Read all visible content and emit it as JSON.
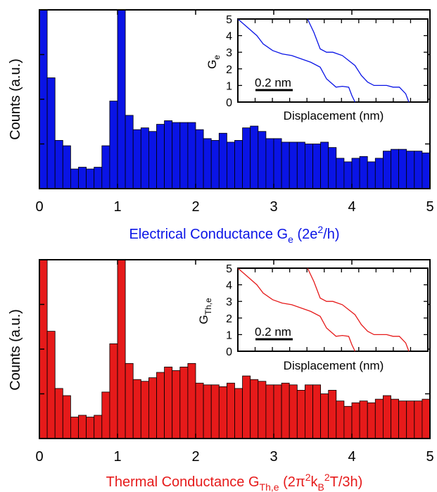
{
  "chart_data": [
    {
      "type": "bar",
      "name": "electrical",
      "color": "#0a14e6",
      "xlabel": "Electrical Conductance G",
      "xlabel_sub": "e",
      "xlabel_unit_open": " (2e",
      "xlabel_unit_sup": "2",
      "xlabel_unit_close": "/h)",
      "ylabel": "Counts (a.u.)",
      "xlim": [
        0,
        5
      ],
      "ylim": [
        0,
        100
      ],
      "xticks": [
        "0",
        "1",
        "2",
        "3",
        "4",
        "5"
      ],
      "bin_width": 0.1,
      "bin_starts": [
        0.0,
        0.1,
        0.2,
        0.3,
        0.4,
        0.5,
        0.6,
        0.7,
        0.8,
        0.9,
        1.0,
        1.1,
        1.2,
        1.3,
        1.4,
        1.5,
        1.6,
        1.7,
        1.8,
        1.9,
        2.0,
        2.1,
        2.2,
        2.3,
        2.4,
        2.5,
        2.6,
        2.7,
        2.8,
        2.9,
        3.0,
        3.1,
        3.2,
        3.3,
        3.4,
        3.5,
        3.6,
        3.7,
        3.8,
        3.9,
        4.0,
        4.1,
        4.2,
        4.3,
        4.4,
        4.5,
        4.6,
        4.7,
        4.8,
        4.9
      ],
      "values": [
        100,
        62,
        27,
        24,
        11,
        12,
        11,
        12,
        24,
        49,
        100,
        41,
        33,
        34,
        32,
        36,
        38,
        37,
        37,
        37,
        33,
        28,
        27,
        31,
        26,
        27,
        34,
        35,
        32,
        28,
        28,
        26,
        26,
        26,
        25,
        25,
        26,
        23,
        17,
        15,
        17,
        18,
        15,
        17,
        21,
        22,
        22,
        21,
        21,
        20
      ],
      "inset": {
        "ylabel": "G",
        "ylabel_sub": "e",
        "xlabel": "Displacement (nm)",
        "scale_bar": "0.2 nm",
        "yticks": [
          "0",
          "1",
          "2",
          "3",
          "4",
          "5"
        ],
        "ylim": [
          0,
          5
        ],
        "traces": [
          {
            "x": [
              0.0,
              0.06,
              0.12,
              0.16,
              0.22,
              0.28,
              0.34,
              0.4,
              0.46,
              0.52,
              0.56,
              0.62,
              0.66,
              0.7,
              0.72,
              0.74
            ],
            "y": [
              5.0,
              4.5,
              4.0,
              3.5,
              3.1,
              2.9,
              2.8,
              2.6,
              2.4,
              2.1,
              1.4,
              0.9,
              0.95,
              0.9,
              0.4,
              0.0
            ]
          },
          {
            "x": [
              0.44,
              0.48,
              0.52,
              0.56,
              0.6,
              0.66,
              0.7,
              0.74,
              0.78,
              0.82,
              0.86,
              0.9,
              0.94,
              0.98,
              1.02,
              1.06,
              1.08
            ],
            "y": [
              5.0,
              4.2,
              3.2,
              3.0,
              3.0,
              2.8,
              2.5,
              2.2,
              1.6,
              1.2,
              1.0,
              1.0,
              1.0,
              0.9,
              0.9,
              0.5,
              0.0
            ]
          }
        ]
      }
    },
    {
      "type": "bar",
      "name": "thermal",
      "color": "#e61a1a",
      "xlabel": "Thermal Conductance G",
      "xlabel_sub": "Th,e",
      "xlabel_unit_open": " (2π",
      "xlabel_unit_sup": "2",
      "xlabel_unit_mid": "k",
      "xlabel_unit_sub2": "B",
      "xlabel_unit_sup2": "2",
      "xlabel_unit_close": "T/3h)",
      "ylabel": "Counts (a.u.)",
      "xlim": [
        0,
        5
      ],
      "ylim": [
        0,
        100
      ],
      "xticks": [
        "0",
        "1",
        "2",
        "3",
        "4",
        "5"
      ],
      "bin_width": 0.1,
      "bin_starts": [
        0.0,
        0.1,
        0.2,
        0.3,
        0.4,
        0.5,
        0.6,
        0.7,
        0.8,
        0.9,
        1.0,
        1.1,
        1.2,
        1.3,
        1.4,
        1.5,
        1.6,
        1.7,
        1.8,
        1.9,
        2.0,
        2.1,
        2.2,
        2.3,
        2.4,
        2.5,
        2.6,
        2.7,
        2.8,
        2.9,
        3.0,
        3.1,
        3.2,
        3.3,
        3.4,
        3.5,
        3.6,
        3.7,
        3.8,
        3.9,
        4.0,
        4.1,
        4.2,
        4.3,
        4.4,
        4.5,
        4.6,
        4.7,
        4.8,
        4.9
      ],
      "values": [
        100,
        60,
        28,
        24,
        12,
        13,
        12,
        13,
        26,
        53,
        100,
        42,
        33,
        32,
        34,
        37,
        40,
        38,
        40,
        42,
        31,
        30,
        30,
        29,
        31,
        28,
        35,
        33,
        32,
        30,
        30,
        31,
        30,
        27,
        30,
        30,
        25,
        27,
        21,
        18,
        20,
        21,
        20,
        22,
        24,
        22,
        21,
        21,
        21,
        22
      ],
      "inset": {
        "ylabel": "G",
        "ylabel_sub": "Th,e",
        "xlabel": "Displacement (nm)",
        "scale_bar": "0.2 nm",
        "yticks": [
          "0",
          "1",
          "2",
          "3",
          "4",
          "5"
        ],
        "ylim": [
          0,
          5
        ],
        "traces": [
          {
            "x": [
              0.0,
              0.06,
              0.12,
              0.16,
              0.22,
              0.28,
              0.34,
              0.4,
              0.46,
              0.52,
              0.56,
              0.62,
              0.66,
              0.7,
              0.72,
              0.74
            ],
            "y": [
              5.0,
              4.5,
              4.0,
              3.5,
              3.1,
              2.9,
              2.8,
              2.6,
              2.4,
              2.1,
              1.4,
              0.9,
              0.95,
              0.9,
              0.4,
              0.0
            ]
          },
          {
            "x": [
              0.44,
              0.48,
              0.52,
              0.56,
              0.6,
              0.66,
              0.7,
              0.74,
              0.78,
              0.82,
              0.86,
              0.9,
              0.94,
              0.98,
              1.02,
              1.06,
              1.08
            ],
            "y": [
              5.0,
              4.2,
              3.2,
              3.0,
              3.0,
              2.8,
              2.5,
              2.2,
              1.6,
              1.2,
              1.0,
              1.0,
              1.0,
              0.9,
              0.9,
              0.5,
              0.0
            ]
          }
        ]
      }
    }
  ]
}
